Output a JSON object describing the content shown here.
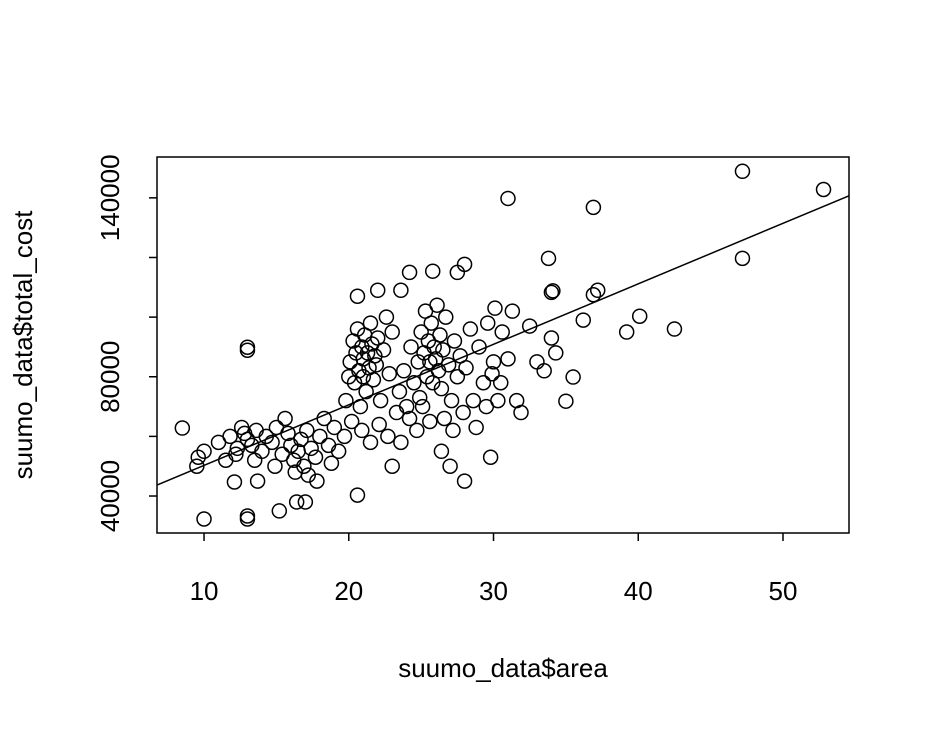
{
  "chart_data": {
    "type": "scatter",
    "x_label": "suumo_data$area",
    "y_label": "suumo_data$total_cost",
    "xlim": [
      6.75,
      54.56
    ],
    "ylim": [
      27600,
      153700
    ],
    "xticks": [
      10,
      20,
      30,
      40,
      50
    ],
    "yticks": [
      40000,
      {
        "value": 60000,
        "label": null
      },
      80000,
      {
        "value": 100000,
        "label": null
      },
      {
        "value": 120000,
        "label": null
      },
      140000
    ],
    "regression": {
      "intercept": 30000,
      "slope": 2029,
      "color": "#000000"
    },
    "series": [
      {
        "color": "#000000",
        "x": [
          8.5,
          10.0,
          13.0,
          13.0,
          13.0,
          13.0,
          15.2,
          16.4,
          17.0,
          20.6,
          31.0,
          36.9,
          47.2,
          52.8,
          47.2,
          33.8,
          34.0,
          34.1,
          37.2,
          36.9,
          36.2,
          39.2,
          40.1,
          42.5,
          35.5,
          35.0,
          28.0,
          24.2,
          25.8,
          27.5,
          20.6,
          22.0,
          23.6,
          28.0,
          27.0,
          29.8,
          26.4,
          23.0,
          13.7,
          12.1,
          17.8,
          9.5,
          9.6,
          10.0,
          11.0,
          11.5,
          11.8,
          12.3,
          12.6,
          12.8,
          13.0,
          13.3,
          13.6,
          14.0,
          14.3,
          14.7,
          15.0,
          15.4,
          15.8,
          16.0,
          16.2,
          16.5,
          16.7,
          16.9,
          17.1,
          17.4,
          17.7,
          18.0,
          18.3,
          18.6,
          19.0,
          19.3,
          19.7,
          12.2,
          13.5,
          15.6,
          16.3,
          17.2,
          18.8,
          14.9,
          20.1,
          20.3,
          20.4,
          20.5,
          20.6,
          20.7,
          20.8,
          20.9,
          21.0,
          21.0,
          21.1,
          21.2,
          21.3,
          21.4,
          21.5,
          21.6,
          21.7,
          21.8,
          21.9,
          22.0,
          22.2,
          22.4,
          22.6,
          22.8,
          23.0,
          20.2,
          20.9,
          21.5,
          22.1,
          22.7,
          23.3,
          19.8,
          20.0,
          23.5,
          23.8,
          24.0,
          24.2,
          24.5,
          24.7,
          24.9,
          23.6,
          24.3,
          24.8,
          25.0,
          25.2,
          25.3,
          25.4,
          25.5,
          25.6,
          25.7,
          25.8,
          25.9,
          26.0,
          26.1,
          26.2,
          26.3,
          26.4,
          26.5,
          26.7,
          26.9,
          27.1,
          27.3,
          27.5,
          27.7,
          27.9,
          28.1,
          28.4,
          25.1,
          25.6,
          26.6,
          27.2,
          28.6,
          29.0,
          29.3,
          29.6,
          30.0,
          30.1,
          30.3,
          30.6,
          31.0,
          31.3,
          31.6,
          31.9,
          32.5,
          33.0,
          33.5,
          34.0,
          34.3,
          29.5,
          30.5,
          28.8,
          29.9
        ],
        "values": [
          62800,
          32300,
          32300,
          33300,
          89900,
          88900,
          35000,
          38000,
          38000,
          40300,
          139800,
          136800,
          148900,
          142800,
          119700,
          119700,
          108300,
          108800,
          109000,
          107500,
          99000,
          95000,
          100300,
          96000,
          79900,
          71800,
          117700,
          115000,
          115400,
          115000,
          107000,
          109000,
          109000,
          45000,
          50000,
          53000,
          55000,
          50000,
          45000,
          44700,
          45000,
          50000,
          53000,
          55000,
          58000,
          52000,
          60000,
          56000,
          63000,
          61000,
          59000,
          57000,
          62000,
          55000,
          60000,
          58000,
          63000,
          54000,
          61000,
          57000,
          52000,
          55000,
          59000,
          50000,
          62000,
          56000,
          53000,
          60000,
          66000,
          57000,
          63000,
          55000,
          60000,
          54000,
          52000,
          66000,
          48000,
          47000,
          51000,
          50000,
          85000,
          92000,
          78000,
          88000,
          96000,
          82000,
          70000,
          90000,
          86000,
          80000,
          94000,
          75000,
          88000,
          83000,
          98000,
          91000,
          79000,
          87000,
          84000,
          93000,
          72000,
          89000,
          100000,
          81000,
          95000,
          65000,
          62000,
          58000,
          64000,
          60000,
          68000,
          72000,
          80000,
          75000,
          82000,
          70000,
          66000,
          78000,
          62000,
          73000,
          58000,
          90000,
          85000,
          95000,
          88000,
          102000,
          80000,
          92000,
          85000,
          98000,
          78000,
          90000,
          86000,
          104000,
          82000,
          94000,
          76000,
          89000,
          100000,
          84000,
          72000,
          92000,
          80000,
          87000,
          68000,
          83000,
          96000,
          70000,
          65000,
          66000,
          62000,
          72000,
          90000,
          78000,
          98000,
          85000,
          103000,
          72000,
          95000,
          86000,
          102000,
          72000,
          68000,
          97000,
          85000,
          82000,
          93000,
          88000,
          70000,
          78000,
          63000,
          81000
        ]
      }
    ]
  }
}
